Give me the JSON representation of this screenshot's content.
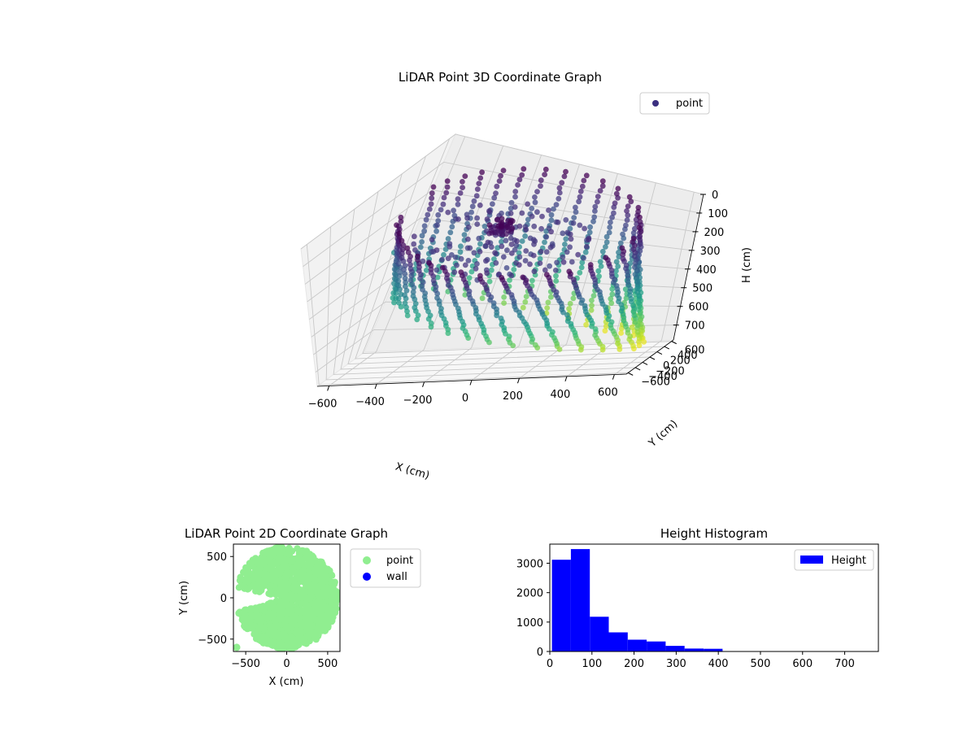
{
  "colors": {
    "point_2d": "#90ee90",
    "wall": "#0000ff",
    "histogram": "#0000ff",
    "legend_point_3d": "#3b2f80",
    "colormap": "viridis",
    "pane": "#f2f2f2"
  },
  "chart_data": [
    {
      "type": "scatter",
      "projection": "3d",
      "title": "LiDAR Point 3D Coordinate Graph",
      "xlabel": "X (cm)",
      "ylabel": "Y (cm)",
      "zlabel": "H (cm)",
      "xlim": [
        -650,
        650
      ],
      "ylim": [
        -650,
        650
      ],
      "zlim": [
        0,
        780
      ],
      "z_inverted": true,
      "xticks": [
        "−600",
        "−400",
        "−200",
        "0",
        "200",
        "400",
        "600"
      ],
      "yticks": [
        "−600",
        "−400",
        "−200",
        "0",
        "200",
        "400",
        "600"
      ],
      "zticks": [
        "0",
        "100",
        "200",
        "300",
        "400",
        "500",
        "600",
        "700"
      ],
      "legend": {
        "labels": [
          "point"
        ],
        "placement": "upper-right"
      },
      "grid": true,
      "colormap": "viridis",
      "structure": {
        "outer_wall_radius_cm": [
          460,
          620
        ],
        "wall_column_count": 36,
        "column_height_range_cm": [
          0,
          720
        ],
        "inner_ring_radii_cm": [
          70,
          150,
          230,
          310,
          390
        ],
        "inner_ring_height_cm": 120,
        "center_cluster_radius_cm": 80,
        "center_cluster_height_cm": 60,
        "outlier_points": [
          [
            -620,
            320,
            350
          ],
          [
            -600,
            380,
            420
          ]
        ]
      }
    },
    {
      "type": "scatter",
      "title": "LiDAR Point 2D Coordinate Graph",
      "xlabel": "X (cm)",
      "ylabel": "Y (cm)",
      "xlim": [
        -650,
        650
      ],
      "ylim": [
        -650,
        650
      ],
      "xticks": [
        "−500",
        "0",
        "500"
      ],
      "yticks": [
        "−500",
        "0",
        "500"
      ],
      "legend": {
        "labels": [
          "point",
          "wall"
        ],
        "placement": "outside-right"
      },
      "series": [
        {
          "name": "point",
          "color": "#90ee90"
        },
        {
          "name": "wall",
          "color": "#0000ff"
        }
      ],
      "region": {
        "outer_radius_cm": 620,
        "notch_start_deg": 168,
        "notch_end_deg": 196,
        "notch_inner_radius_cm": 40,
        "isolated_point": [
          -610,
          -600
        ]
      }
    },
    {
      "type": "bar",
      "subtype": "histogram",
      "title": "Height Histogram",
      "xlim": [
        0,
        780
      ],
      "ylim": [
        0,
        3650
      ],
      "xticks": [
        "0",
        "100",
        "200",
        "300",
        "400",
        "500",
        "600",
        "700"
      ],
      "yticks": [
        "0",
        "1000",
        "2000",
        "3000"
      ],
      "legend": {
        "labels": [
          "Height"
        ],
        "placement": "upper-right"
      },
      "bin_edges": [
        5,
        50,
        95,
        140,
        185,
        230,
        275,
        320,
        365,
        410
      ],
      "counts": [
        3120,
        3480,
        1180,
        650,
        400,
        340,
        190,
        100,
        90
      ]
    }
  ]
}
